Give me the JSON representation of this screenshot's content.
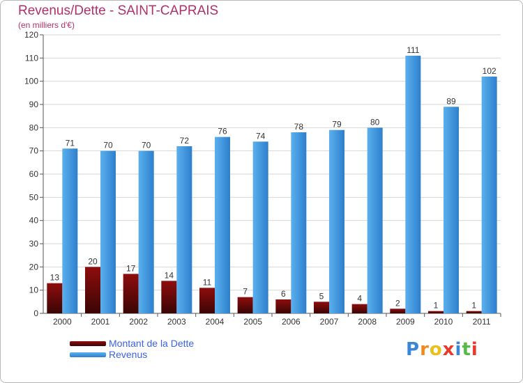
{
  "header": {
    "title": "Revenus/Dette - SAINT-CAPRAIS",
    "subtitle": "(en milliers d'€)"
  },
  "colors": {
    "title": "#b0306a",
    "dette_top": "#8f0d0d",
    "dette_bottom": "#3a0505",
    "revenus_top": "#5ab0ee",
    "revenus_bottom": "#2e7fcc",
    "grid": "#d6d6d6",
    "axis_text": "#333333"
  },
  "chart_data": {
    "type": "bar",
    "title": "Revenus/Dette - SAINT-CAPRAIS",
    "subtitle": "(en milliers d'€)",
    "categories": [
      "2000",
      "2001",
      "2002",
      "2003",
      "2004",
      "2005",
      "2006",
      "2007",
      "2008",
      "2009",
      "2010",
      "2011"
    ],
    "series": [
      {
        "name": "Montant de la Dette",
        "values": [
          13,
          20,
          17,
          14,
          11,
          7,
          6,
          5,
          4,
          2,
          1,
          1
        ]
      },
      {
        "name": "Revenus",
        "values": [
          71,
          70,
          70,
          72,
          76,
          74,
          78,
          79,
          80,
          111,
          89,
          102
        ]
      }
    ],
    "ylim": [
      0,
      120
    ],
    "yticks": [
      0,
      10,
      20,
      30,
      40,
      50,
      60,
      70,
      80,
      90,
      100,
      110,
      120
    ],
    "grid": true,
    "legend_position": "bottom-left"
  },
  "legend": {
    "items": [
      {
        "label": "Montant de la Dette"
      },
      {
        "label": "Revenus"
      }
    ]
  },
  "logo": {
    "text": "Proxiti",
    "letters": [
      {
        "ch": "P",
        "color": "#3a86d8"
      },
      {
        "ch": "r",
        "color": "#f08a1c"
      },
      {
        "ch": "o",
        "color": "#e8c21a"
      },
      {
        "ch": "x",
        "color": "#e8392a"
      },
      {
        "ch": "i",
        "color": "#3a86d8"
      },
      {
        "ch": "t",
        "color": "#57b947"
      },
      {
        "ch": "i",
        "color": "#e8392a"
      }
    ]
  }
}
